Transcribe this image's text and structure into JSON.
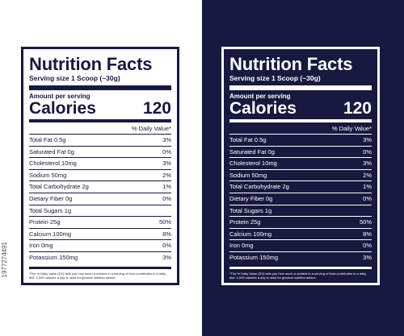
{
  "colors": {
    "navy": "#17193f",
    "white": "#ffffff"
  },
  "labels": [
    {
      "variant": "light",
      "title": "Nutrition Facts",
      "serving": "Serving size 1 Scoop (~30g)",
      "amount": "Amount per serving",
      "calories_label": "Calories",
      "calories_value": "120",
      "dv_header": "% Daily Value*",
      "nutrients": [
        {
          "name": "Total Fat 0.5g",
          "dv": "3%"
        },
        {
          "name": "Saturated Fat 0g",
          "dv": "0%"
        },
        {
          "name": "Cholesterol 10mg",
          "dv": "3%"
        },
        {
          "name": "Sodium 50mg",
          "dv": "2%"
        },
        {
          "name": "Total Carbohydrate 2g",
          "dv": "1%"
        },
        {
          "name": "Dietary Fiber 0g",
          "dv": "0%"
        },
        {
          "name": "Total Sugars 1g",
          "dv": ""
        },
        {
          "name": "Protein 25g",
          "dv": "50%"
        },
        {
          "name": "Calcium 100mg",
          "dv": "8%"
        },
        {
          "name": "Iron 0mg",
          "dv": "0%"
        },
        {
          "name": "Potassium 150mg",
          "dv": "3%"
        }
      ],
      "footnote": "*The % Daily Value (DV) tells you how much a nutrient in a serving of food contributes to a daily diet. 2,000 calories a day is used for general nutrition advice."
    },
    {
      "variant": "dark",
      "title": "Nutrition Facts",
      "serving": "Serving size 1 Scoop (~30g)",
      "amount": "Amount per serving",
      "calories_label": "Calories",
      "calories_value": "120",
      "dv_header": "% Daily Value*",
      "nutrients": [
        {
          "name": "Total Fat 0.5g",
          "dv": "3%"
        },
        {
          "name": "Saturated Fat 0g",
          "dv": "0%"
        },
        {
          "name": "Cholesterol 10mg",
          "dv": "3%"
        },
        {
          "name": "Sodium 50mg",
          "dv": "2%"
        },
        {
          "name": "Total Carbohydrate 2g",
          "dv": "1%"
        },
        {
          "name": "Dietary Fiber 0g",
          "dv": "0%"
        },
        {
          "name": "Total Sugars 1g",
          "dv": ""
        },
        {
          "name": "Protein 25g",
          "dv": "50%"
        },
        {
          "name": "Calcium 100mg",
          "dv": "8%"
        },
        {
          "name": "Iron 0mg",
          "dv": "0%"
        },
        {
          "name": "Potassium 150mg",
          "dv": "3%"
        }
      ],
      "footnote": "*The % Daily Value (DV) tells you how much a nutrient in a serving of food contributes to a daily diet. 2,000 calories a day is used for general nutrition advice."
    }
  ],
  "side_text": "1977274491"
}
